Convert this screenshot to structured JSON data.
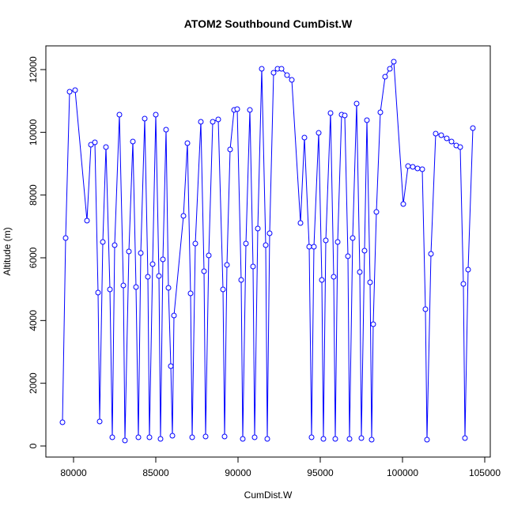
{
  "chart_data": {
    "type": "line",
    "title": "ATOM2 Southbound CumDist.W",
    "xlabel": "CumDist.W",
    "ylabel": "Altitude (m)",
    "color": "#0000ff",
    "markers": true,
    "x": [
      79327,
      79519,
      79760,
      80096,
      80817,
      81058,
      81298,
      81490,
      81587,
      81779,
      81971,
      82212,
      82356,
      82500,
      82788,
      83029,
      83125,
      83365,
      83606,
      83798,
      83942,
      84087,
      84327,
      84519,
      84615,
      84808,
      85000,
      85192,
      85288,
      85433,
      85625,
      85769,
      85913,
      86010,
      86106,
      86683,
      86923,
      87115,
      87212,
      87404,
      87740,
      87933,
      88029,
      88221,
      88462,
      88798,
      89087,
      89183,
      89327,
      89519,
      89760,
      89952,
      90192,
      90288,
      90481,
      90721,
      90913,
      91010,
      91202,
      91442,
      91683,
      91779,
      91923,
      92163,
      92404,
      92644,
      92981,
      93269,
      93798,
      94038,
      94327,
      94471,
      94615,
      94904,
      95096,
      95192,
      95337,
      95625,
      95817,
      95913,
      96058,
      96298,
      96490,
      96683,
      96779,
      96971,
      97212,
      97404,
      97500,
      97692,
      97837,
      98029,
      98125,
      98221,
      98413,
      98654,
      98942,
      99231,
      99471,
      100048,
      100337,
      100625,
      100913,
      101202,
      101394,
      101490,
      101731,
      102019,
      102356,
      102692,
      102981,
      103269,
      103510,
      103702,
      103798,
      103990,
      104279
    ],
    "values": [
      756,
      6630,
      11293,
      11344,
      7184,
      9604,
      9680,
      4890,
      781,
      6504,
      9529,
      4991,
      277,
      6403,
      10562,
      5117,
      176,
      6201,
      9705,
      5067,
      277,
      6151,
      10436,
      5394,
      277,
      5798,
      10562,
      5420,
      227,
      5949,
      10083,
      5042,
      2546,
      328,
      4159,
      7335,
      9655,
      4865,
      277,
      6453,
      10335,
      5571,
      302,
      6075,
      10335,
      10411,
      4991,
      302,
      5773,
      9453,
      10713,
      10739,
      5294,
      227,
      6453,
      10713,
      5722,
      277,
      6932,
      12024,
      6403,
      227,
      6781,
      11898,
      12024,
      12024,
      11822,
      11671,
      7109,
      9831,
      6352,
      277,
      6352,
      9982,
      5294,
      227,
      6554,
      10613,
      5394,
      227,
      6504,
      10562,
      10537,
      6050,
      227,
      6630,
      10915,
      5546,
      252,
      6226,
      10386,
      5218,
      202,
      3882,
      7461,
      10638,
      11772,
      12024,
      12251,
      7713,
      8923,
      8898,
      8848,
      8823,
      4361,
      202,
      6126,
      9957,
      9907,
      9806,
      9705,
      9579,
      9529,
      5168,
      252,
      5621,
      10134
    ],
    "xlim": [
      78317,
      105337
    ],
    "ylim": [
      -353,
      12756
    ],
    "xticks": [
      80000,
      85000,
      90000,
      95000,
      100000,
      105000
    ],
    "yticks": [
      0,
      2000,
      4000,
      6000,
      8000,
      10000,
      12000
    ]
  }
}
